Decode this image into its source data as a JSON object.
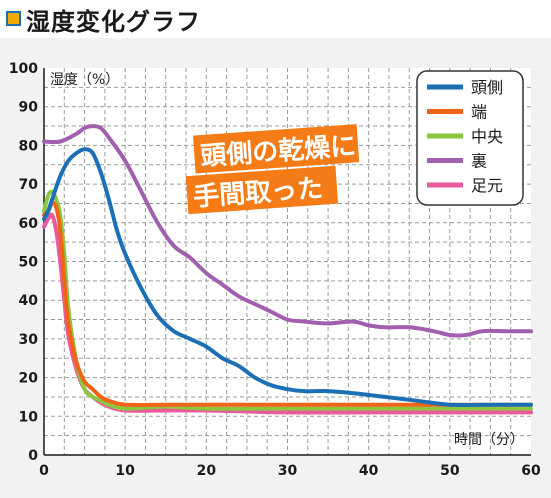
{
  "page_title": "湿度変化グラフ",
  "chart_data": {
    "type": "line",
    "title": "",
    "xlabel": "時間（分）",
    "ylabel": "湿度（%）",
    "xlim": [
      0,
      60
    ],
    "ylim": [
      0,
      100
    ],
    "xticks": [
      0,
      10,
      20,
      30,
      40,
      50,
      60
    ],
    "yticks": [
      0,
      10,
      20,
      30,
      40,
      50,
      60,
      70,
      80,
      90,
      100
    ],
    "grid": true,
    "legend_position": "top-right",
    "annotation": {
      "lines": [
        "頭側の乾燥に",
        "手間取った"
      ]
    },
    "series": [
      {
        "name": "頭側",
        "color": "#1a6fb5",
        "points": [
          [
            0,
            61
          ],
          [
            0.5,
            63
          ],
          [
            1,
            66
          ],
          [
            2,
            72
          ],
          [
            3,
            76
          ],
          [
            4,
            78
          ],
          [
            5,
            79
          ],
          [
            6,
            78
          ],
          [
            7,
            73
          ],
          [
            8,
            66
          ],
          [
            9,
            58
          ],
          [
            10,
            52
          ],
          [
            12,
            43
          ],
          [
            14,
            36
          ],
          [
            16,
            32
          ],
          [
            18,
            30
          ],
          [
            20,
            28
          ],
          [
            22,
            25
          ],
          [
            24,
            23
          ],
          [
            26,
            20
          ],
          [
            28,
            18
          ],
          [
            30,
            17
          ],
          [
            32,
            16.5
          ],
          [
            35,
            16.5
          ],
          [
            38,
            16
          ],
          [
            42,
            15
          ],
          [
            46,
            14
          ],
          [
            50,
            13
          ],
          [
            55,
            13
          ],
          [
            60,
            13
          ]
        ]
      },
      {
        "name": "端",
        "color": "#f06418",
        "points": [
          [
            0,
            62
          ],
          [
            0.5,
            63
          ],
          [
            1,
            65
          ],
          [
            1.5,
            64
          ],
          [
            2,
            58
          ],
          [
            2.5,
            45
          ],
          [
            3,
            34
          ],
          [
            4,
            24
          ],
          [
            5,
            19
          ],
          [
            6,
            17
          ],
          [
            7,
            15
          ],
          [
            8,
            14
          ],
          [
            10,
            13
          ],
          [
            15,
            13
          ],
          [
            20,
            13
          ],
          [
            30,
            13
          ],
          [
            40,
            13
          ],
          [
            50,
            13
          ],
          [
            60,
            13
          ]
        ]
      },
      {
        "name": "中央",
        "color": "#8cc63e",
        "points": [
          [
            0,
            63
          ],
          [
            0.5,
            67
          ],
          [
            1,
            68
          ],
          [
            1.5,
            66
          ],
          [
            2,
            62
          ],
          [
            2.5,
            52
          ],
          [
            3,
            38
          ],
          [
            4,
            24
          ],
          [
            5,
            17
          ],
          [
            6,
            15
          ],
          [
            7,
            14
          ],
          [
            8,
            13
          ],
          [
            10,
            12
          ],
          [
            15,
            12.5
          ],
          [
            20,
            12
          ],
          [
            30,
            12
          ],
          [
            40,
            12
          ],
          [
            50,
            12
          ],
          [
            60,
            12
          ]
        ]
      },
      {
        "name": "裏",
        "color": "#a060ae",
        "points": [
          [
            0,
            81
          ],
          [
            2,
            81
          ],
          [
            4,
            83
          ],
          [
            5,
            84.5
          ],
          [
            6,
            85
          ],
          [
            7,
            84.5
          ],
          [
            8,
            82
          ],
          [
            10,
            76
          ],
          [
            12,
            68
          ],
          [
            14,
            60
          ],
          [
            16,
            54
          ],
          [
            18,
            51
          ],
          [
            20,
            47
          ],
          [
            22,
            44
          ],
          [
            24,
            41
          ],
          [
            26,
            39
          ],
          [
            28,
            37
          ],
          [
            30,
            35
          ],
          [
            32,
            34.5
          ],
          [
            35,
            34
          ],
          [
            38,
            34.5
          ],
          [
            40,
            33.5
          ],
          [
            42,
            33
          ],
          [
            45,
            33
          ],
          [
            48,
            32
          ],
          [
            50,
            31
          ],
          [
            52,
            31
          ],
          [
            54,
            32
          ],
          [
            57,
            32
          ],
          [
            60,
            32
          ]
        ]
      },
      {
        "name": "足元",
        "color": "#ea5a9b",
        "points": [
          [
            0,
            59
          ],
          [
            0.5,
            61
          ],
          [
            1,
            62
          ],
          [
            1.5,
            58
          ],
          [
            2,
            50
          ],
          [
            2.5,
            40
          ],
          [
            3,
            31
          ],
          [
            4,
            22
          ],
          [
            5,
            17
          ],
          [
            6,
            15
          ],
          [
            7,
            13.5
          ],
          [
            8,
            12.5
          ],
          [
            10,
            11.5
          ],
          [
            15,
            11.5
          ],
          [
            20,
            11.5
          ],
          [
            30,
            11
          ],
          [
            40,
            11
          ],
          [
            50,
            11
          ],
          [
            60,
            11
          ]
        ]
      }
    ]
  }
}
